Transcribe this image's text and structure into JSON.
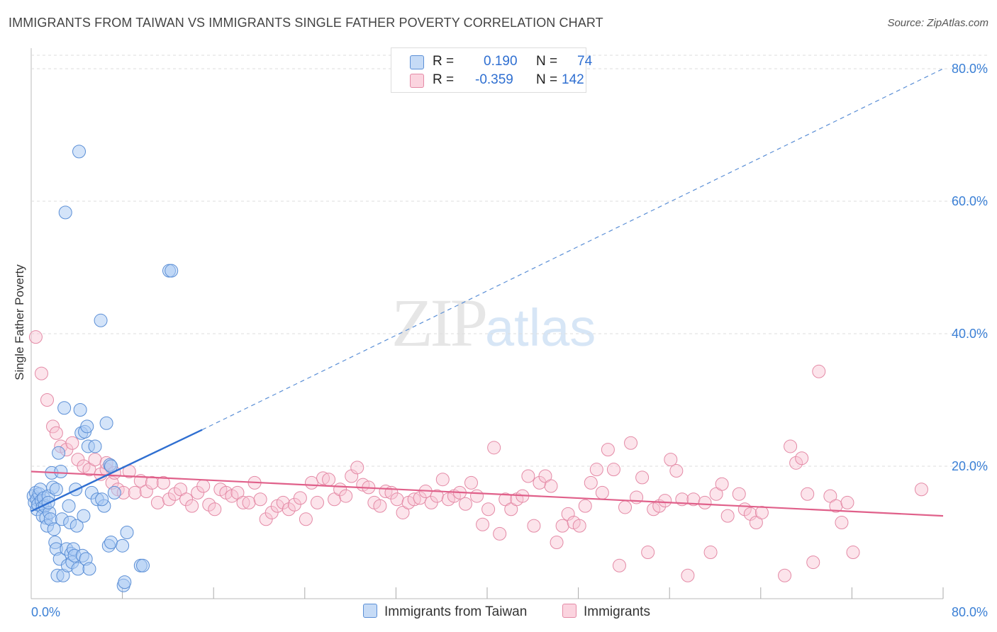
{
  "title": "IMMIGRANTS FROM TAIWAN VS IMMIGRANTS SINGLE FATHER POVERTY CORRELATION CHART",
  "source": "Source: ZipAtlas.com",
  "watermark": {
    "zip": "ZIP",
    "atlas": "atlas"
  },
  "legend": {
    "r_label": "R =",
    "n_label": "N =",
    "rows": [
      {
        "r": "0.190",
        "n": "74",
        "color": "#a9c9f3",
        "border": "#5b8fd6"
      },
      {
        "r": "-0.359",
        "n": "142",
        "color": "#f8c3d3",
        "border": "#e48aa6"
      }
    ]
  },
  "bottom_legend": [
    {
      "label": "Immigrants from Taiwan",
      "color": "#c6dbf6",
      "border": "#5b8fd6"
    },
    {
      "label": "Immigrants",
      "color": "#fbd4df",
      "border": "#e48aa6"
    }
  ],
  "chart_data": {
    "type": "scatter",
    "xlabel": "",
    "ylabel": "Single Father Poverty",
    "xlim": [
      0,
      80
    ],
    "ylim": [
      0,
      80
    ],
    "x_tick_labels": [
      "0.0%",
      "80.0%"
    ],
    "y_tick_labels": [
      "20.0%",
      "40.0%",
      "60.0%",
      "80.0%"
    ],
    "y_ticks": [
      20,
      40,
      60,
      80
    ],
    "grid": true,
    "series": [
      {
        "name": "Immigrants from Taiwan",
        "color": "#5b8fd6",
        "fill": "#a9c9f3",
        "trend": {
          "x": [
            0,
            15
          ],
          "y": [
            13.2,
            25.5
          ],
          "dashed_to": [
            80,
            80
          ]
        },
        "points": [
          [
            0.2,
            15.5
          ],
          [
            0.3,
            14.5
          ],
          [
            0.4,
            16
          ],
          [
            0.5,
            15
          ],
          [
            0.5,
            13.5
          ],
          [
            0.6,
            14.2
          ],
          [
            0.7,
            15.8
          ],
          [
            0.8,
            16.5
          ],
          [
            0.9,
            14.8
          ],
          [
            1.0,
            13.8
          ],
          [
            1.0,
            12.5
          ],
          [
            1.1,
            15.2
          ],
          [
            1.2,
            14
          ],
          [
            1.3,
            12.2
          ],
          [
            1.4,
            11
          ],
          [
            1.5,
            15.5
          ],
          [
            1.6,
            13
          ],
          [
            1.7,
            12
          ],
          [
            1.8,
            19
          ],
          [
            1.9,
            16.8
          ],
          [
            2.0,
            10.5
          ],
          [
            2.1,
            8.5
          ],
          [
            2.2,
            7.5
          ],
          [
            2.3,
            3.5
          ],
          [
            2.4,
            22
          ],
          [
            2.5,
            6
          ],
          [
            2.6,
            19.2
          ],
          [
            2.7,
            12
          ],
          [
            2.8,
            3.5
          ],
          [
            2.9,
            28.8
          ],
          [
            3.0,
            58.3
          ],
          [
            3.1,
            7.5
          ],
          [
            3.2,
            5
          ],
          [
            3.3,
            14
          ],
          [
            3.4,
            11.5
          ],
          [
            3.5,
            6.8
          ],
          [
            3.6,
            5.5
          ],
          [
            3.7,
            7.5
          ],
          [
            3.8,
            6.5
          ],
          [
            3.9,
            16.5
          ],
          [
            4.0,
            11
          ],
          [
            4.1,
            4.5
          ],
          [
            4.2,
            67.5
          ],
          [
            4.3,
            28.5
          ],
          [
            4.4,
            25
          ],
          [
            4.5,
            6.5
          ],
          [
            4.6,
            12.5
          ],
          [
            4.7,
            25.2
          ],
          [
            4.8,
            6
          ],
          [
            4.9,
            26
          ],
          [
            5.0,
            23
          ],
          [
            5.1,
            4.5
          ],
          [
            5.3,
            16
          ],
          [
            5.6,
            23
          ],
          [
            5.8,
            15
          ],
          [
            6.1,
            42
          ],
          [
            6.4,
            14
          ],
          [
            6.6,
            26.5
          ],
          [
            6.8,
            8
          ],
          [
            7.0,
            8.5
          ],
          [
            6.2,
            15
          ],
          [
            6.9,
            20.2
          ],
          [
            7.3,
            16
          ],
          [
            7.0,
            20
          ],
          [
            8.0,
            8
          ],
          [
            8.1,
            2
          ],
          [
            8.2,
            2.5
          ],
          [
            8.4,
            10
          ],
          [
            9.6,
            5
          ],
          [
            9.8,
            5
          ],
          [
            12.1,
            49.5
          ],
          [
            12.3,
            49.5
          ],
          [
            2.2,
            16.5
          ],
          [
            1.5,
            14.5
          ]
        ]
      },
      {
        "name": "Immigrants",
        "color": "#e48aa6",
        "fill": "#f8c3d3",
        "trend": {
          "x": [
            0,
            80
          ],
          "y": [
            19.2,
            12.5
          ]
        },
        "points": [
          [
            0.4,
            39.5
          ],
          [
            0.9,
            34
          ],
          [
            1.4,
            30
          ],
          [
            1.9,
            26
          ],
          [
            2.2,
            25
          ],
          [
            2.6,
            23
          ],
          [
            3.1,
            22.5
          ],
          [
            3.6,
            23.5
          ],
          [
            4.1,
            21
          ],
          [
            4.6,
            20
          ],
          [
            5.1,
            19.5
          ],
          [
            5.6,
            21
          ],
          [
            6.1,
            18.8
          ],
          [
            6.6,
            19.5
          ],
          [
            7.1,
            17.5
          ],
          [
            7.6,
            16.5
          ],
          [
            8.1,
            16
          ],
          [
            8.6,
            19.2
          ],
          [
            9.1,
            16
          ],
          [
            9.6,
            17.8
          ],
          [
            10.1,
            16.2
          ],
          [
            10.6,
            17.5
          ],
          [
            11.1,
            14.5
          ],
          [
            11.6,
            17.5
          ],
          [
            12.1,
            15
          ],
          [
            12.6,
            15.8
          ],
          [
            13.1,
            16.5
          ],
          [
            13.6,
            15
          ],
          [
            14.1,
            14
          ],
          [
            14.6,
            16
          ],
          [
            15.1,
            17
          ],
          [
            15.6,
            14.2
          ],
          [
            16.1,
            13.5
          ],
          [
            16.6,
            16.5
          ],
          [
            17.1,
            16
          ],
          [
            17.6,
            15.5
          ],
          [
            18.1,
            16
          ],
          [
            18.6,
            14.5
          ],
          [
            19.1,
            14.5
          ],
          [
            19.6,
            17.5
          ],
          [
            20.1,
            15
          ],
          [
            20.6,
            12
          ],
          [
            21.1,
            13
          ],
          [
            21.6,
            14
          ],
          [
            22.1,
            14.5
          ],
          [
            22.6,
            13.5
          ],
          [
            23.1,
            14.2
          ],
          [
            23.6,
            15.2
          ],
          [
            24.1,
            12
          ],
          [
            24.6,
            17.5
          ],
          [
            25.1,
            14.5
          ],
          [
            25.6,
            18.2
          ],
          [
            26.1,
            18
          ],
          [
            26.6,
            15
          ],
          [
            27.1,
            16.5
          ],
          [
            27.6,
            15.5
          ],
          [
            28.1,
            18.5
          ],
          [
            28.6,
            19.8
          ],
          [
            29.1,
            17.2
          ],
          [
            29.6,
            16.8
          ],
          [
            30.1,
            14.5
          ],
          [
            30.6,
            14
          ],
          [
            31.1,
            16.2
          ],
          [
            31.6,
            16
          ],
          [
            32.1,
            15
          ],
          [
            32.6,
            13
          ],
          [
            33.1,
            14.5
          ],
          [
            33.6,
            15
          ],
          [
            34.1,
            15.2
          ],
          [
            34.6,
            16.2
          ],
          [
            35.1,
            14.5
          ],
          [
            35.6,
            15.5
          ],
          [
            36.1,
            18
          ],
          [
            36.6,
            15
          ],
          [
            37.1,
            15.5
          ],
          [
            37.6,
            16
          ],
          [
            38.1,
            14.3
          ],
          [
            38.6,
            17.5
          ],
          [
            39.1,
            15.5
          ],
          [
            39.6,
            11.2
          ],
          [
            40.1,
            13.5
          ],
          [
            40.6,
            22.8
          ],
          [
            41.1,
            9.8
          ],
          [
            41.6,
            15
          ],
          [
            42.1,
            13.5
          ],
          [
            42.6,
            15
          ],
          [
            43.1,
            15.5
          ],
          [
            43.6,
            18.5
          ],
          [
            44.1,
            11
          ],
          [
            44.6,
            17.5
          ],
          [
            45.1,
            18.5
          ],
          [
            45.6,
            17
          ],
          [
            46.1,
            8.5
          ],
          [
            46.6,
            11
          ],
          [
            47.1,
            12.8
          ],
          [
            47.6,
            11.5
          ],
          [
            48.1,
            11
          ],
          [
            48.6,
            14
          ],
          [
            49.1,
            17.5
          ],
          [
            49.6,
            19.5
          ],
          [
            50.1,
            16
          ],
          [
            50.6,
            22.5
          ],
          [
            51.1,
            19.5
          ],
          [
            51.6,
            5
          ],
          [
            52.1,
            13.8
          ],
          [
            52.6,
            23.5
          ],
          [
            53.1,
            15.3
          ],
          [
            53.6,
            18.3
          ],
          [
            54.1,
            7
          ],
          [
            54.6,
            13.5
          ],
          [
            55.1,
            14
          ],
          [
            55.6,
            14.8
          ],
          [
            56.1,
            21
          ],
          [
            56.6,
            19.3
          ],
          [
            57.1,
            15
          ],
          [
            57.6,
            3.5
          ],
          [
            58.1,
            15
          ],
          [
            59.1,
            14.5
          ],
          [
            59.6,
            7
          ],
          [
            60.1,
            15.8
          ],
          [
            60.6,
            17.3
          ],
          [
            61.1,
            12.5
          ],
          [
            62.1,
            15.8
          ],
          [
            62.6,
            13.5
          ],
          [
            63.1,
            12.8
          ],
          [
            63.6,
            11.5
          ],
          [
            64.1,
            13
          ],
          [
            66.1,
            3.5
          ],
          [
            66.6,
            23
          ],
          [
            67.1,
            20.5
          ],
          [
            67.6,
            21.2
          ],
          [
            68.1,
            15.8
          ],
          [
            68.6,
            5.5
          ],
          [
            69.1,
            34.3
          ],
          [
            70.1,
            15.5
          ],
          [
            70.6,
            14
          ],
          [
            71.1,
            11.5
          ],
          [
            71.6,
            14.5
          ],
          [
            72.1,
            7
          ],
          [
            78.1,
            16.5
          ],
          [
            6.6,
            20.5
          ],
          [
            7.3,
            19
          ]
        ]
      }
    ]
  }
}
